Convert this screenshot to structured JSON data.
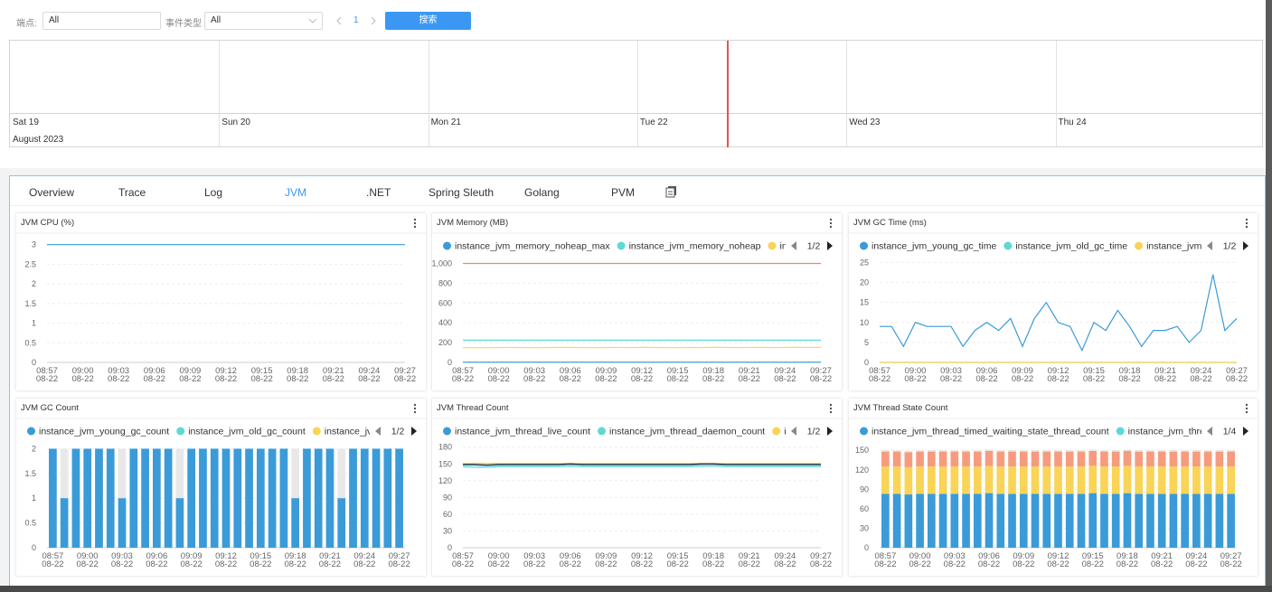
{
  "filters": {
    "endpoint_label": "端点:",
    "endpoint_value": "All",
    "event_type_label": "事件类型",
    "event_type_value": "All",
    "page": "1",
    "search_button": "搜索"
  },
  "timeline": {
    "days": [
      "Sat 19",
      "Sun 20",
      "Mon 21",
      "Tue 22",
      "Wed 23",
      "Thu 24"
    ],
    "month": "August 2023"
  },
  "tabs": {
    "items": [
      "Overview",
      "Trace",
      "Log",
      "JVM",
      ".NET",
      "Spring Sleuth",
      "Golang",
      "PVM"
    ],
    "active": 3
  },
  "chart_data": [
    {
      "type": "line",
      "title": "JVM CPU (%)",
      "categories": [
        "08:57\n08-22",
        null,
        null,
        "09:00\n08-22",
        null,
        null,
        "09:03\n08-22",
        null,
        null,
        "09:06\n08-22",
        null,
        null,
        "09:09\n08-22",
        null,
        null,
        "09:12\n08-22",
        null,
        null,
        "09:15\n08-22",
        null,
        null,
        "09:18\n08-22",
        null,
        null,
        "09:21\n08-22",
        null,
        null,
        "09:24\n08-22",
        null,
        null,
        "09:27\n08-22"
      ],
      "series": [
        {
          "color": "#3a9bd8",
          "values": [
            3,
            3,
            3,
            3,
            3,
            3,
            3,
            3,
            3,
            3,
            3,
            3,
            3,
            3,
            3,
            3,
            3,
            3,
            3,
            3,
            3,
            3,
            3,
            3,
            3,
            3,
            3,
            3,
            3,
            3,
            3
          ]
        }
      ],
      "ylim": [
        0,
        3.2
      ],
      "yticks": [
        0,
        0.5,
        1,
        1.5,
        2,
        2.5,
        3
      ],
      "grid": true
    },
    {
      "type": "line",
      "title": "JVM Memory (MB)",
      "legend_page": "1/2",
      "categories": [
        "08:57\n08-22",
        null,
        null,
        "09:00\n08-22",
        null,
        null,
        "09:03\n08-22",
        null,
        null,
        "09:06\n08-22",
        null,
        null,
        "09:09\n08-22",
        null,
        null,
        "09:12\n08-22",
        null,
        null,
        "09:15\n08-22",
        null,
        null,
        "09:18\n08-22",
        null,
        null,
        "09:21\n08-22",
        null,
        null,
        "09:24\n08-22",
        null,
        null,
        "09:27\n08-22"
      ],
      "series": [
        {
          "name": "instance_jvm_memory_noheap_max",
          "color": "#3a9bd8",
          "values": [
            3,
            3,
            3,
            3,
            3,
            3,
            3,
            3,
            3,
            3,
            3,
            3,
            3,
            3,
            3,
            3,
            3,
            3,
            3,
            3,
            3,
            3,
            3,
            3,
            3,
            3,
            3,
            3,
            3,
            3,
            3
          ]
        },
        {
          "name": "instance_jvm_memory_noheap",
          "color": "#5fd8d8",
          "values": [
            225,
            225,
            225,
            225,
            225,
            225,
            225,
            225,
            225,
            225,
            225,
            225,
            225,
            225,
            225,
            225,
            225,
            225,
            225,
            225,
            225,
            225,
            225,
            225,
            225,
            225,
            225,
            225,
            225,
            225,
            225
          ]
        },
        {
          "name": "insta",
          "color": "#f9d456",
          "values": [
            150,
            148,
            149,
            150,
            151,
            150,
            149,
            150,
            152,
            151,
            150,
            149,
            150,
            151,
            150,
            152,
            151,
            150,
            149,
            151,
            150,
            152,
            151,
            150,
            151,
            152,
            150,
            151,
            152,
            151,
            152
          ]
        },
        {
          "color": "#f4826b",
          "values": [
            1000,
            1000,
            1000,
            1000,
            1000,
            1000,
            1000,
            1000,
            1000,
            1000,
            1000,
            1000,
            1000,
            1000,
            1000,
            1000,
            1000,
            1000,
            1000,
            1000,
            1000,
            1000,
            1000,
            1000,
            1000,
            1000,
            1000,
            1000,
            1000,
            1000,
            1000
          ]
        }
      ],
      "ylim": [
        0,
        1050
      ],
      "yticks": [
        0,
        200,
        400,
        600,
        800,
        {
          "value": 1000,
          "label": "1,000"
        }
      ],
      "grid": true
    },
    {
      "type": "line",
      "title": "JVM GC Time (ms)",
      "legend_page": "1/2",
      "categories": [
        "08:57\n08-22",
        null,
        null,
        "09:00\n08-22",
        null,
        null,
        "09:03\n08-22",
        null,
        null,
        "09:06\n08-22",
        null,
        null,
        "09:09\n08-22",
        null,
        null,
        "09:12\n08-22",
        null,
        null,
        "09:15\n08-22",
        null,
        null,
        "09:18\n08-22",
        null,
        null,
        "09:21\n08-22",
        null,
        null,
        "09:24\n08-22",
        null,
        null,
        "09:27\n08-22"
      ],
      "series": [
        {
          "name": "instance_jvm_young_gc_time",
          "color": "#3a9bd8",
          "values": [
            9,
            9,
            4,
            10,
            9,
            9,
            9,
            4,
            8,
            10,
            8,
            11,
            4,
            11,
            15,
            10,
            9,
            3,
            10,
            8,
            13,
            9,
            4,
            8,
            8,
            9,
            5,
            8,
            22,
            8,
            11
          ]
        },
        {
          "name": "instance_jvm_old_gc_time",
          "color": "#5fd8d8",
          "values": [
            0,
            0,
            0,
            0,
            0,
            0,
            0,
            0,
            0,
            0,
            0,
            0,
            0,
            0,
            0,
            0,
            0,
            0,
            0,
            0,
            0,
            0,
            0,
            0,
            0,
            0,
            0,
            0,
            0,
            0,
            0
          ]
        },
        {
          "name": "instance_jvm_nc",
          "color": "#f9d456",
          "values": [
            0,
            0,
            0,
            0,
            0,
            0,
            0,
            0,
            0,
            0,
            0,
            0,
            0,
            0,
            0,
            0,
            0,
            0,
            0,
            0,
            0,
            0,
            0,
            0,
            0,
            0,
            0,
            0,
            0,
            0,
            0
          ]
        }
      ],
      "ylim": [
        0,
        26
      ],
      "yticks": [
        0,
        5,
        10,
        15,
        20,
        25
      ],
      "grid": true
    },
    {
      "type": "bar",
      "title": "JVM GC Count",
      "legend_page": "1/2",
      "stacked": true,
      "bar_background": "#e8e8e8",
      "categories": [
        "08:57\n08-22",
        null,
        null,
        "09:00\n08-22",
        null,
        null,
        "09:03\n08-22",
        null,
        null,
        "09:06\n08-22",
        null,
        null,
        "09:09\n08-22",
        null,
        null,
        "09:12\n08-22",
        null,
        null,
        "09:15\n08-22",
        null,
        null,
        "09:18\n08-22",
        null,
        null,
        "09:21\n08-22",
        null,
        null,
        "09:24\n08-22",
        null,
        null,
        "09:27\n08-22"
      ],
      "series": [
        {
          "name": "instance_jvm_young_gc_count",
          "color": "#3a9bd8",
          "values": [
            2,
            1,
            2,
            2,
            2,
            2,
            1,
            2,
            2,
            2,
            2,
            1,
            2,
            2,
            2,
            2,
            2,
            2,
            2,
            2,
            2,
            1,
            2,
            2,
            2,
            1,
            2,
            2,
            2,
            2,
            2
          ]
        },
        {
          "name": "instance_jvm_old_gc_count",
          "color": "#5fd8d8",
          "values": [
            0,
            0,
            0,
            0,
            0,
            0,
            0,
            0,
            0,
            0,
            0,
            0,
            0,
            0,
            0,
            0,
            0,
            0,
            0,
            0,
            0,
            0,
            0,
            0,
            0,
            0,
            0,
            0,
            0,
            0,
            0
          ]
        },
        {
          "name": "instance_jvm_",
          "color": "#f9d456",
          "values": [
            0,
            0,
            0,
            0,
            0,
            0,
            0,
            0,
            0,
            0,
            0,
            0,
            0,
            0,
            0,
            0,
            0,
            0,
            0,
            0,
            0,
            0,
            0,
            0,
            0,
            0,
            0,
            0,
            0,
            0,
            0
          ]
        }
      ],
      "ylim": [
        0,
        2.1
      ],
      "yticks": [
        0,
        0.5,
        1,
        1.5,
        2
      ],
      "grid": true
    },
    {
      "type": "line",
      "title": "JVM Thread Count",
      "legend_page": "1/2",
      "categories": [
        "08:57\n08-22",
        null,
        null,
        "09:00\n08-22",
        null,
        null,
        "09:03\n08-22",
        null,
        null,
        "09:06\n08-22",
        null,
        null,
        "09:09\n08-22",
        null,
        null,
        "09:12\n08-22",
        null,
        null,
        "09:15\n08-22",
        null,
        null,
        "09:18\n08-22",
        null,
        null,
        "09:21\n08-22",
        null,
        null,
        "09:24\n08-22",
        null,
        null,
        "09:27\n08-22"
      ],
      "series": [
        {
          "name": "instance_jvm_thread_live_count",
          "color": "#3a9bd8",
          "values": [
            148,
            148,
            147,
            148,
            148,
            148,
            148,
            148,
            148,
            149,
            148,
            148,
            148,
            148,
            148,
            148,
            148,
            148,
            148,
            148,
            149,
            149,
            148,
            148,
            148,
            148,
            148,
            148,
            148,
            148,
            148
          ]
        },
        {
          "name": "instance_jvm_thread_daemon_count",
          "color": "#5fd8d8",
          "values": [
            145,
            144,
            144,
            145,
            145,
            145,
            145,
            145,
            145,
            146,
            145,
            145,
            145,
            145,
            145,
            145,
            145,
            145,
            145,
            145,
            146,
            146,
            145,
            145,
            145,
            145,
            145,
            145,
            145,
            145,
            145
          ]
        },
        {
          "name": "inst",
          "color": "#f9d456",
          "values": [
            151,
            151,
            151,
            151,
            151,
            151,
            151,
            151,
            151,
            151,
            151,
            151,
            151,
            151,
            151,
            151,
            151,
            151,
            151,
            151,
            151,
            151,
            151,
            151,
            151,
            151,
            151,
            151,
            151,
            151,
            151
          ]
        },
        {
          "color": "#333333",
          "values": [
            149,
            149,
            148,
            149,
            149,
            149,
            149,
            149,
            149,
            150,
            149,
            149,
            149,
            149,
            149,
            149,
            149,
            149,
            149,
            149,
            150,
            150,
            149,
            149,
            149,
            149,
            149,
            149,
            149,
            149,
            149
          ]
        }
      ],
      "ylim": [
        0,
        186
      ],
      "yticks": [
        0,
        30,
        60,
        90,
        120,
        150,
        180
      ],
      "grid": true
    },
    {
      "type": "bar",
      "title": "JVM Thread State Count",
      "legend_page": "1/4",
      "stacked": true,
      "categories": [
        "08:57\n08-22",
        null,
        null,
        "09:00\n08-22",
        null,
        null,
        "09:03\n08-22",
        null,
        null,
        "09:06\n08-22",
        null,
        null,
        "09:09\n08-22",
        null,
        null,
        "09:12\n08-22",
        null,
        null,
        "09:15\n08-22",
        null,
        null,
        "09:18\n08-22",
        null,
        null,
        "09:21\n08-22",
        null,
        null,
        "09:24\n08-22",
        null,
        null,
        "09:27\n08-22"
      ],
      "series": [
        {
          "name": "instance_jvm_thread_timed_waiting_state_thread_count",
          "color": "#3a9bd8",
          "values": [
            83,
            83,
            82,
            83,
            83,
            83,
            83,
            83,
            83,
            84,
            83,
            83,
            83,
            83,
            83,
            83,
            83,
            83,
            84,
            83,
            83,
            84,
            83,
            83,
            83,
            83,
            83,
            83,
            83,
            83,
            83
          ]
        },
        {
          "name": "instance_jvm_thread",
          "color": "#5fd8d8",
          "values": [
            0,
            0,
            0,
            0,
            0,
            0,
            0,
            0,
            0,
            0,
            0,
            0,
            0,
            0,
            0,
            0,
            0,
            0,
            0,
            0,
            0,
            0,
            0,
            0,
            0,
            0,
            0,
            0,
            0,
            0,
            0
          ]
        },
        {
          "color": "#f9d456",
          "values": [
            42,
            42,
            42,
            42,
            42,
            42,
            42,
            42,
            42,
            42,
            42,
            42,
            42,
            42,
            42,
            42,
            42,
            42,
            42,
            42,
            42,
            42,
            42,
            42,
            42,
            42,
            42,
            42,
            42,
            42,
            42
          ]
        },
        {
          "color": "#f79b7f",
          "values": [
            23,
            23,
            23,
            23,
            23,
            23,
            23,
            23,
            23,
            23,
            23,
            23,
            23,
            23,
            23,
            23,
            23,
            23,
            23,
            23,
            23,
            23,
            23,
            23,
            23,
            23,
            23,
            23,
            23,
            23,
            23
          ]
        },
        {
          "color": "#e3e3e3",
          "values": [
            2,
            2,
            2,
            2,
            2,
            2,
            2,
            2,
            2,
            2,
            2,
            2,
            2,
            2,
            2,
            2,
            2,
            2,
            2,
            2,
            2,
            2,
            2,
            2,
            2,
            2,
            2,
            2,
            2,
            2,
            2
          ]
        }
      ],
      "ylim": [
        0,
        160
      ],
      "yticks": [
        0,
        30,
        60,
        90,
        120,
        150
      ],
      "grid": true
    }
  ]
}
